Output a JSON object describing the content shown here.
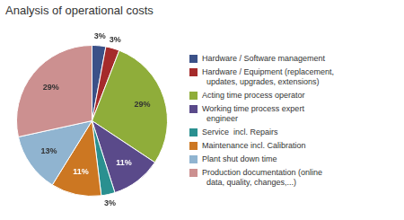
{
  "chart_data": {
    "type": "pie",
    "title": "Analysis of operational costs",
    "categories": [
      "Hardware / Software management",
      "Hardware / Equipment (replacement,\n  updates, upgrades, extensions)",
      "Acting time process operator",
      "Working time process expert\n  engineer",
      "Service  incl. Repairs",
      "Maintenance incl. Calibration",
      "Plant shut down time",
      "Production documentation (online\n  data, quality, changes,...)"
    ],
    "values": [
      3,
      3,
      29,
      11,
      3,
      11,
      13,
      29
    ],
    "value_labels": [
      "3%",
      "3%",
      "29%",
      "11%",
      "3%",
      "11%",
      "13%",
      "29%"
    ],
    "colors": [
      "#3B5188",
      "#A52B2B",
      "#8FAD3A",
      "#5A4A8A",
      "#2A9090",
      "#CC7722",
      "#90B4D0",
      "#CC9090"
    ],
    "data_labels": true,
    "legend": "right"
  }
}
